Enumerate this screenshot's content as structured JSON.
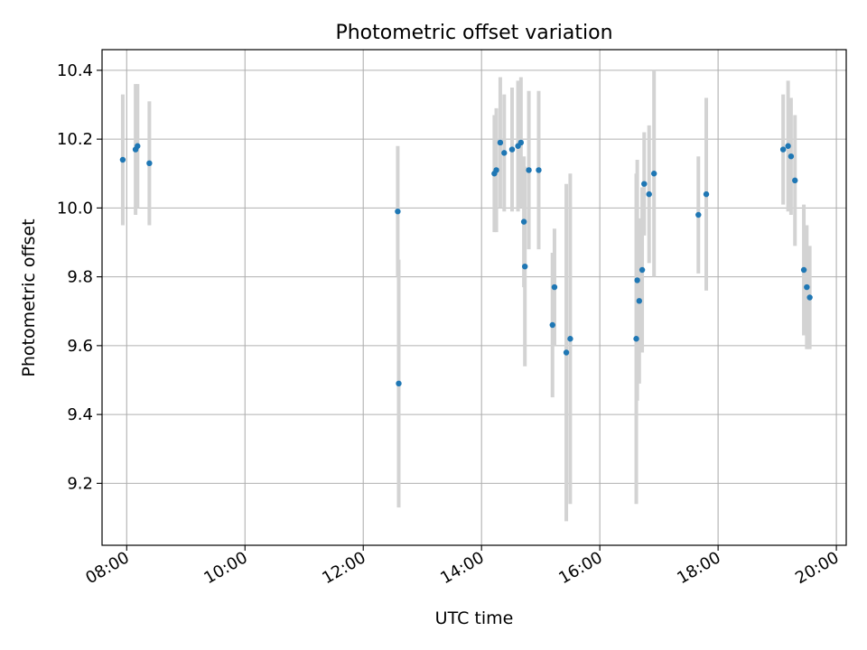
{
  "chart_data": {
    "type": "scatter",
    "title": "Photometric offset variation",
    "xlabel": "UTC time",
    "ylabel": "Photometric offset",
    "xlim": [
      "07:35",
      "20:10"
    ],
    "ylim": [
      9.02,
      10.46
    ],
    "xticks": [
      "08:00",
      "10:00",
      "12:00",
      "14:00",
      "16:00",
      "18:00",
      "20:00"
    ],
    "yticks": [
      "9.2",
      "9.4",
      "9.6",
      "9.8",
      "10.0",
      "10.2",
      "10.4"
    ],
    "grid": true,
    "colors": {
      "points": "#1f77b4",
      "errorbars": "#d3d3d3",
      "grid": "#b0b0b0"
    },
    "points": [
      {
        "t": "07:56",
        "y": 10.14,
        "err": 0.19
      },
      {
        "t": "08:09",
        "y": 10.17,
        "err": 0.19
      },
      {
        "t": "08:11",
        "y": 10.18,
        "err": 0.18
      },
      {
        "t": "08:23",
        "y": 10.13,
        "err": 0.18
      },
      {
        "t": "12:35",
        "y": 9.99,
        "err": 0.19
      },
      {
        "t": "12:36",
        "y": 9.49,
        "err": 0.36
      },
      {
        "t": "14:13",
        "y": 10.1,
        "err": 0.17
      },
      {
        "t": "14:15",
        "y": 10.11,
        "err": 0.18
      },
      {
        "t": "14:19",
        "y": 10.19,
        "err": 0.19
      },
      {
        "t": "14:23",
        "y": 10.16,
        "err": 0.17
      },
      {
        "t": "14:31",
        "y": 10.17,
        "err": 0.18
      },
      {
        "t": "14:37",
        "y": 10.18,
        "err": 0.19
      },
      {
        "t": "14:40",
        "y": 10.19,
        "err": 0.19
      },
      {
        "t": "14:43",
        "y": 9.96,
        "err": 0.19
      },
      {
        "t": "14:44",
        "y": 9.83,
        "err": 0.29
      },
      {
        "t": "14:48",
        "y": 10.11,
        "err": 0.23
      },
      {
        "t": "14:58",
        "y": 10.11,
        "err": 0.23
      },
      {
        "t": "15:12",
        "y": 9.66,
        "err": 0.21
      },
      {
        "t": "15:14",
        "y": 9.77,
        "err": 0.17
      },
      {
        "t": "15:26",
        "y": 9.58,
        "err": 0.49
      },
      {
        "t": "15:30",
        "y": 9.62,
        "err": 0.48
      },
      {
        "t": "16:37",
        "y": 9.62,
        "err": 0.48
      },
      {
        "t": "16:38",
        "y": 9.79,
        "err": 0.35
      },
      {
        "t": "16:40",
        "y": 9.73,
        "err": 0.24
      },
      {
        "t": "16:43",
        "y": 9.82,
        "err": 0.24
      },
      {
        "t": "16:45",
        "y": 10.07,
        "err": 0.15
      },
      {
        "t": "16:50",
        "y": 10.04,
        "err": 0.2
      },
      {
        "t": "16:55",
        "y": 10.1,
        "err": 0.3
      },
      {
        "t": "17:40",
        "y": 9.98,
        "err": 0.17
      },
      {
        "t": "17:48",
        "y": 10.04,
        "err": 0.28
      },
      {
        "t": "19:06",
        "y": 10.17,
        "err": 0.16
      },
      {
        "t": "19:11",
        "y": 10.18,
        "err": 0.19
      },
      {
        "t": "19:14",
        "y": 10.15,
        "err": 0.17
      },
      {
        "t": "19:18",
        "y": 10.08,
        "err": 0.19
      },
      {
        "t": "19:27",
        "y": 9.82,
        "err": 0.19
      },
      {
        "t": "19:30",
        "y": 9.77,
        "err": 0.18
      },
      {
        "t": "19:33",
        "y": 9.74,
        "err": 0.15
      }
    ]
  }
}
